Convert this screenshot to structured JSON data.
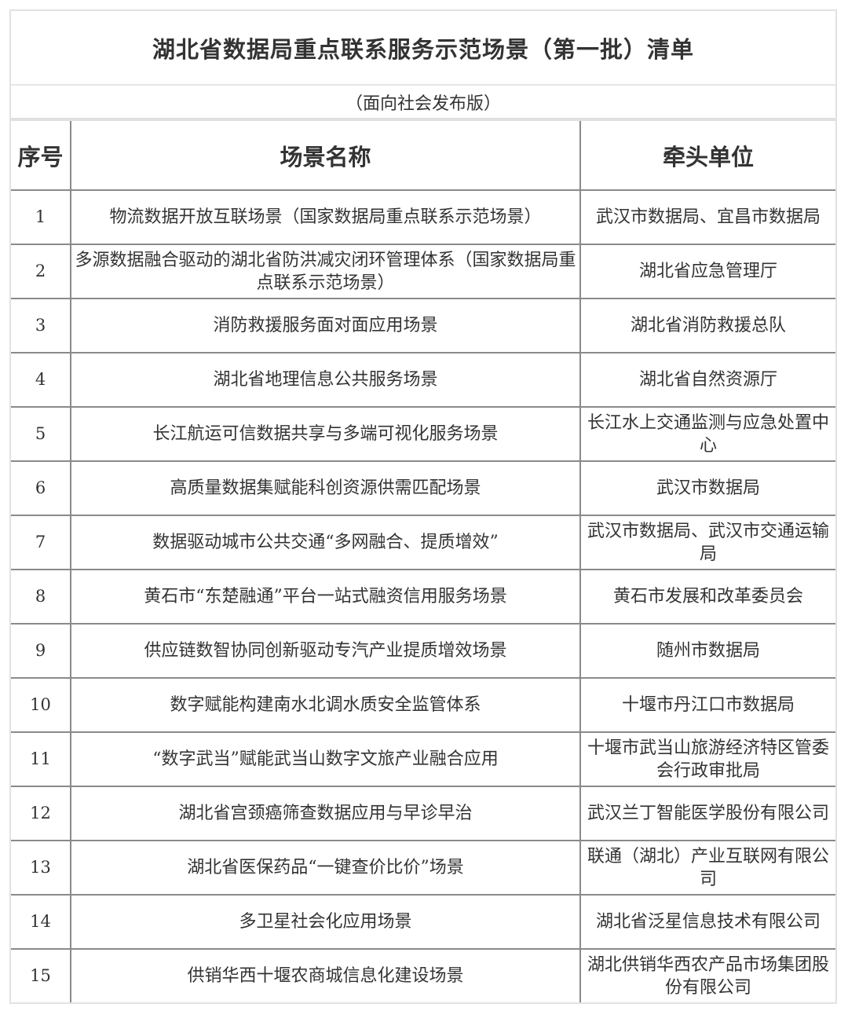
{
  "title": "湖北省数据局重点联系服务示范场景（第一批）清单",
  "subtitle": "（面向社会发布版）",
  "headers": [
    "序号",
    "场景名称",
    "牵头单位"
  ],
  "rows": [
    {
      "no": "1",
      "name": "物流数据开放互联场景（国家数据局重点联系示范场景）",
      "unit": "武汉市数据局、宜昌市数据局"
    },
    {
      "no": "2",
      "name": "多源数据融合驱动的湖北省防洪减灾闭环管理体系（国家数据局重点联系示范场景）",
      "unit": "湖北省应急管理厅"
    },
    {
      "no": "3",
      "name": "消防救援服务面对面应用场景",
      "unit": "湖北省消防救援总队"
    },
    {
      "no": "4",
      "name": "湖北省地理信息公共服务场景",
      "unit": "湖北省自然资源厅"
    },
    {
      "no": "5",
      "name": "长江航运可信数据共享与多端可视化服务场景",
      "unit": "长江水上交通监测与应急处置中心"
    },
    {
      "no": "6",
      "name": "高质量数据集赋能科创资源供需匹配场景",
      "unit": "武汉市数据局"
    },
    {
      "no": "7",
      "name": "数据驱动城市公共交通“多网融合、提质增效”",
      "unit": "武汉市数据局、武汉市交通运输局"
    },
    {
      "no": "8",
      "name": "黄石市“东楚融通”平台一站式融资信用服务场景",
      "unit": "黄石市发展和改革委员会"
    },
    {
      "no": "9",
      "name": "供应链数智协同创新驱动专汽产业提质增效场景",
      "unit": "随州市数据局"
    },
    {
      "no": "10",
      "name": "数字赋能构建南水北调水质安全监管体系",
      "unit": "十堰市丹江口市数据局"
    },
    {
      "no": "11",
      "name": "“数字武当”赋能武当山数字文旅产业融合应用",
      "unit": "十堰市武当山旅游经济特区管委会行政审批局"
    },
    {
      "no": "12",
      "name": "湖北省宫颈癌筛查数据应用与早诊早治",
      "unit": "武汉兰丁智能医学股份有限公司"
    },
    {
      "no": "13",
      "name": "湖北省医保药品“一键查价比价”场景",
      "unit": "联通（湖北）产业互联网有限公司"
    },
    {
      "no": "14",
      "name": "多卫星社会化应用场景",
      "unit": "湖北省泛星信息技术有限公司"
    },
    {
      "no": "15",
      "name": "供销华西十堰农商城信息化建设场景",
      "unit": "湖北供销华西农产品市场集团股份有限公司"
    }
  ]
}
